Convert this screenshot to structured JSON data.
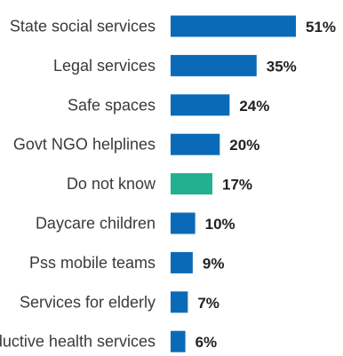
{
  "chart_data": {
    "type": "bar",
    "orientation": "horizontal",
    "categories": [
      "State social services",
      "Legal services",
      "Safe spaces",
      "Govt NGO helplines",
      "Do not know",
      "Daycare children",
      "Pss mobile teams",
      "Services for elderly",
      "Reproductive health services"
    ],
    "values": [
      51,
      35,
      24,
      20,
      17,
      10,
      9,
      7,
      6
    ],
    "value_labels": [
      "51%",
      "35%",
      "24%",
      "20%",
      "17%",
      "10%",
      "9%",
      "7%",
      "6%"
    ],
    "bar_colors": [
      "#0b6ab8",
      "#0b6ab8",
      "#0b6ab8",
      "#0b6ab8",
      "#21b190",
      "#0b6ab8",
      "#0b6ab8",
      "#0b6ab8",
      "#0b6ab8"
    ],
    "title": "",
    "xlabel": "",
    "ylabel": "",
    "xlim": [
      0,
      51
    ],
    "grid": false,
    "legend": "none"
  }
}
